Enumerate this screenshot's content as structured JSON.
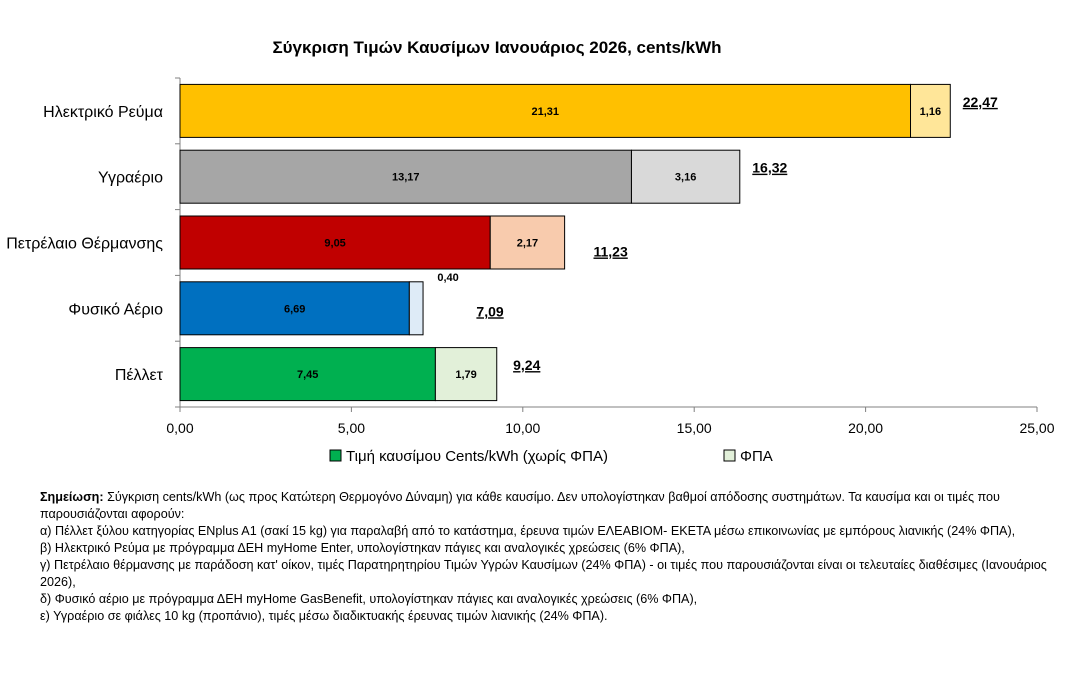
{
  "chart_data": {
    "type": "bar",
    "orientation": "horizontal",
    "stacked": true,
    "title": "Σύγκριση Τιμών Καυσίμων Ιανουάριος 2026, cents/kWh",
    "categories": [
      "Ηλεκτρικό Ρεύμα",
      "Υγραέριο",
      "Πετρέλαιο Θέρμανσης",
      "Φυσικό Αέριο",
      "Πέλλετ"
    ],
    "series": [
      {
        "name": "Τιμή καυσίμου Cents/kWh (χωρίς ΦΠΑ)",
        "values": [
          21.31,
          13.17,
          9.05,
          6.69,
          7.45
        ],
        "labels": [
          "21,31",
          "13,17",
          "9,05",
          "6,69",
          "7,45"
        ]
      },
      {
        "name": "ΦΠΑ",
        "values": [
          1.16,
          3.16,
          2.17,
          0.4,
          1.79
        ],
        "labels": [
          "1,16",
          "3,16",
          "2,17",
          "0,40",
          "1,79"
        ]
      }
    ],
    "totals": [
      22.47,
      16.32,
      11.23,
      7.09,
      9.24
    ],
    "total_labels": [
      "22,47",
      "16,32",
      "11,23",
      "7,09",
      "9,24"
    ],
    "base_colors": [
      "#FFC000",
      "#A6A6A6",
      "#C00000",
      "#0070C0",
      "#00B050"
    ],
    "vat_colors": [
      "#FFE699",
      "#D9D9D9",
      "#F8CBAD",
      "#DEEBF7",
      "#E2F0D9"
    ],
    "legend_base_color": "#00B050",
    "legend_vat_color": "#E2F0D9",
    "xlim": [
      0,
      25
    ],
    "xticks": [
      0,
      5,
      10,
      15,
      20,
      25
    ],
    "xtick_labels": [
      "0,00",
      "5,00",
      "10,00",
      "15,00",
      "20,00",
      "25,00"
    ],
    "legend_position": "bottom",
    "grid": false
  },
  "notes": {
    "heading": "Σημείωση:",
    "intro": " Σύγκριση cents/kWh (ως προς Κατώτερη Θερμογόνο Δύναμη) για κάθε καυσίμο. Δεν υπολογίστηκαν βαθμοί απόδοσης συστημάτων. Τα καυσίμα και οι τιμές που παρουσιάζονται αφορούν:",
    "items": [
      "α) Πέλλετ ξύλου κατηγορίας ENplus A1 (σακί 15 kg) για παραλαβή από το κατάστημα, έρευνα τιμών ΕΛΕΑΒΙΟΜ- ΕΚΕΤΑ μέσω  επικοινωνίας με εμπόρους λιανικής (24% ΦΠΑ),",
      "β) Ηλεκτρικό Ρεύμα με πρόγραμμα ΔΕΗ myHome Enter, υπολογίστηκαν πάγιες και αναλογικές χρεώσεις (6% ΦΠΑ),",
      "γ) Πετρέλαιο θέρμανσης με παράδοση κατ' οίκον, τιμές Παρατηρητηρίου Τιμών Υγρών Καυσίμων (24% ΦΠΑ) - οι τιμές που παρουσιάζονται είναι οι τελευταίες διαθέσιμες (Ιανουάριος 2026),",
      "δ) Φυσικό αέριο με πρόγραμμα ΔΕΗ myHome GasBenefit, υπολογίστηκαν πάγιες και αναλογικές χρεώσεις (6% ΦΠΑ),",
      "ε) Υγραέριο σε φιάλες 10 kg (προπάνιο), τιμές μέσω διαδικτυακής έρευνας τιμών λιανικής (24% ΦΠΑ)."
    ]
  }
}
